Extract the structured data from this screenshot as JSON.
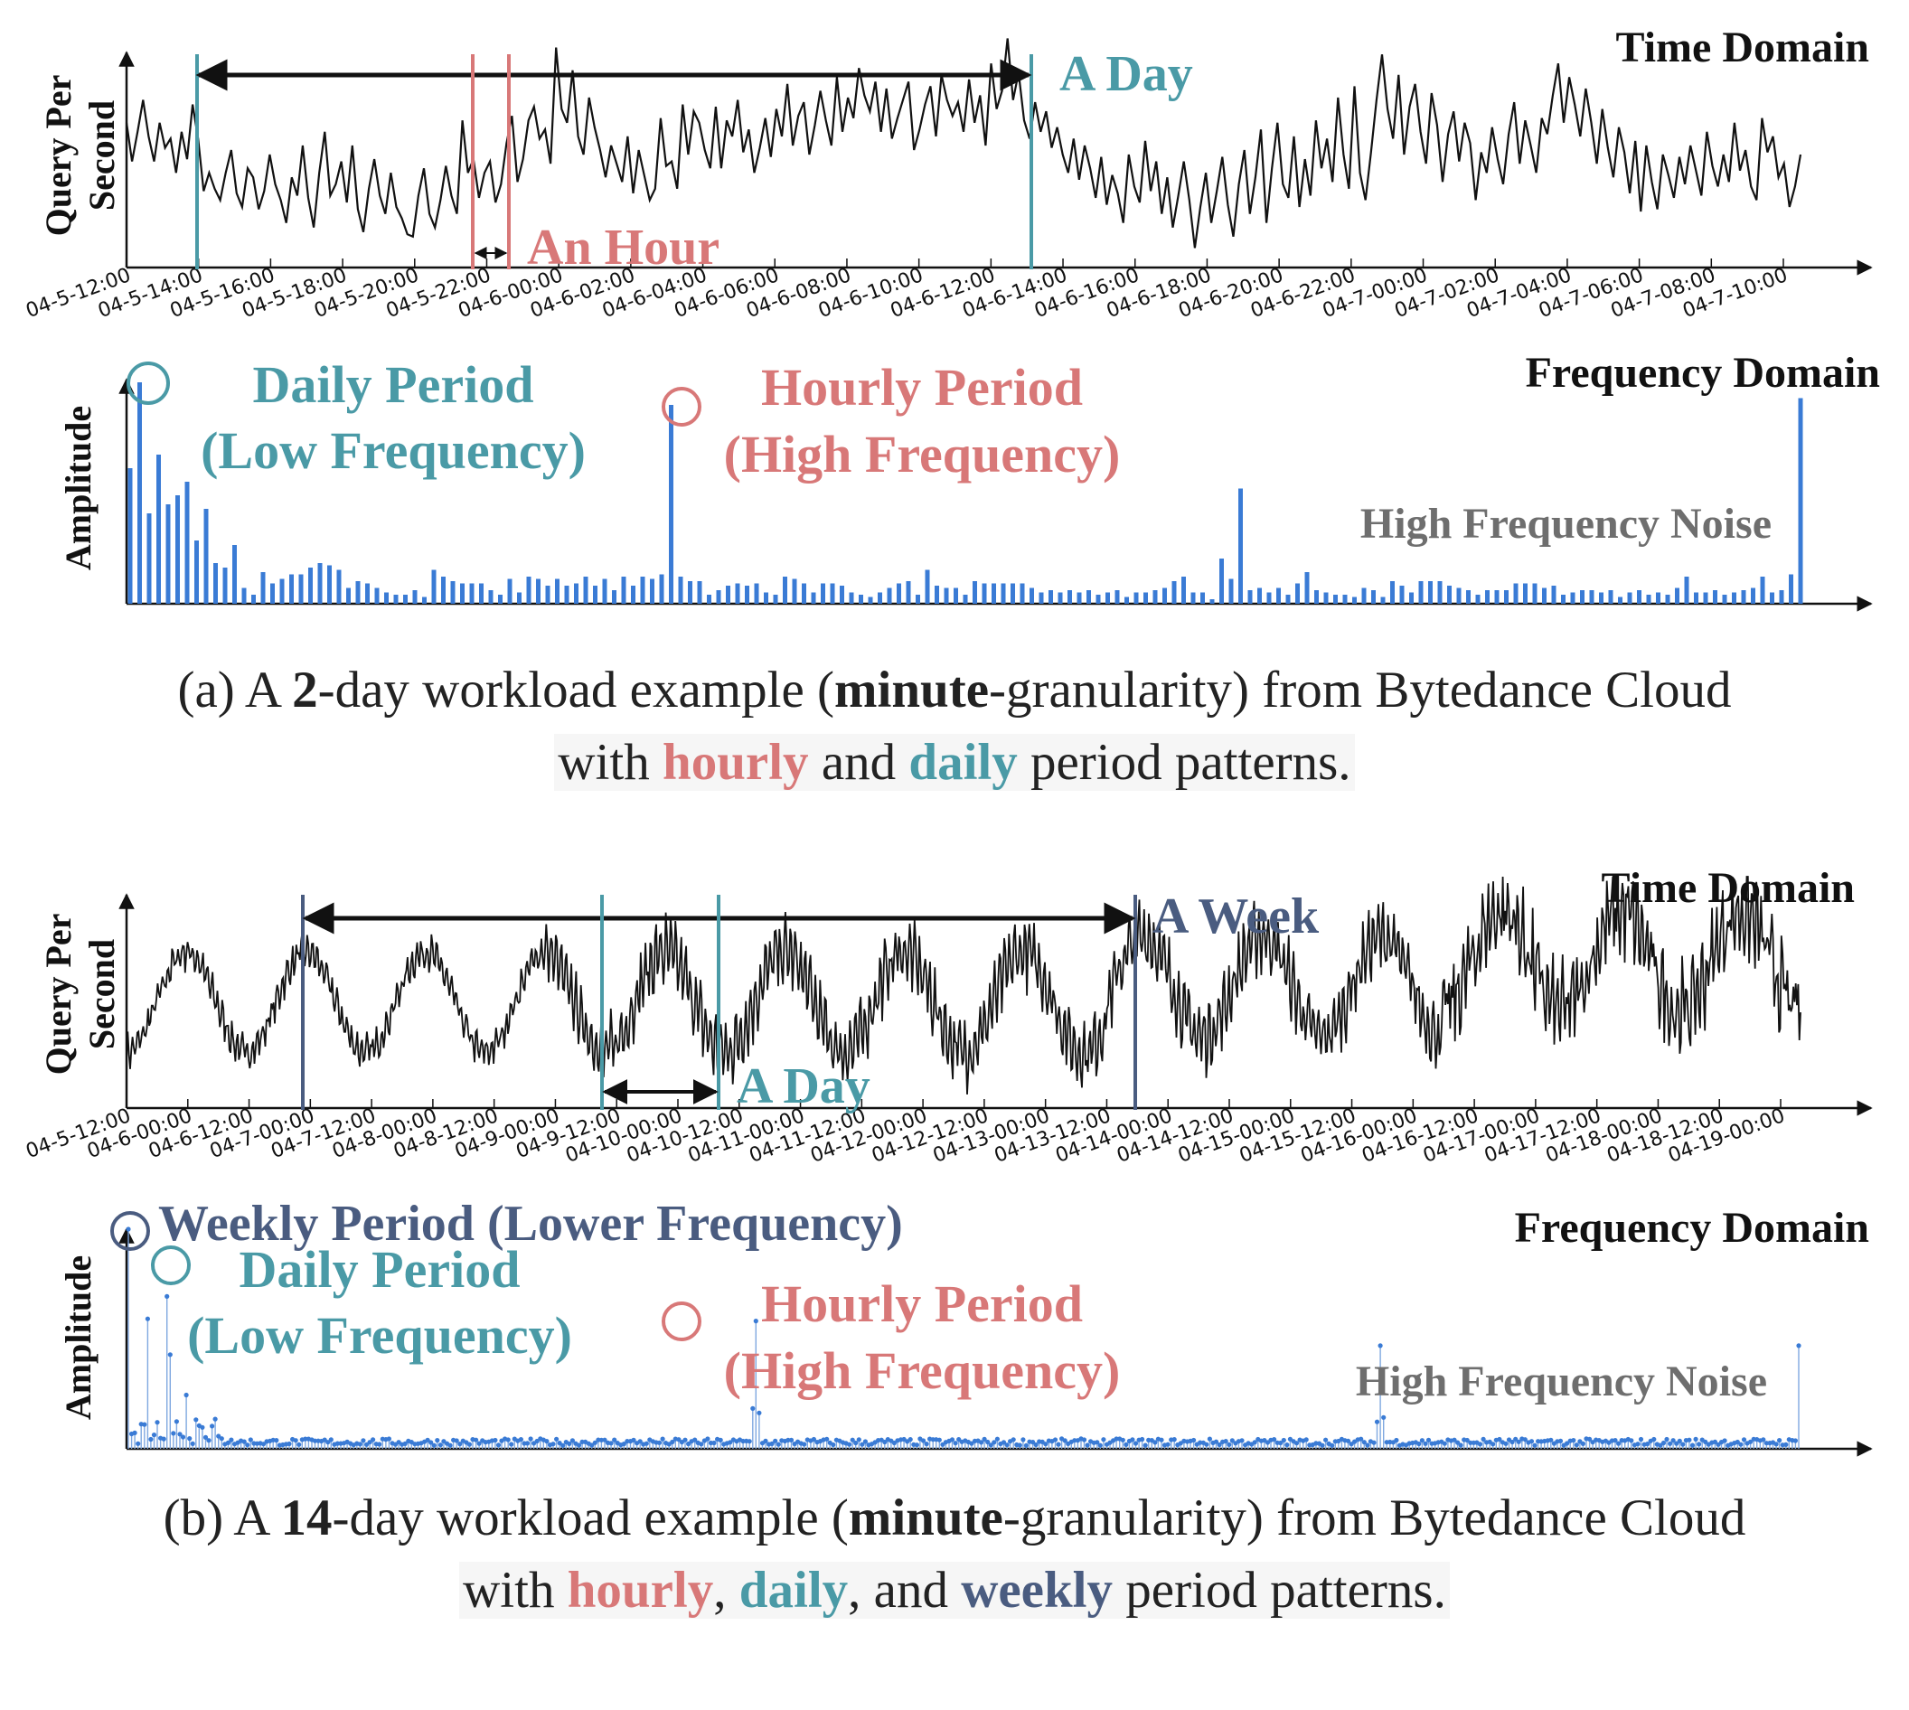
{
  "colors": {
    "teal": "#4a9aa6",
    "red": "#d87878",
    "navy": "#4a5c80",
    "noise_gray": "#6e6e6e",
    "bar_blue": "#3a7bd5",
    "line": "#111111"
  },
  "chart_data": [
    {
      "panel": "a",
      "type": "line",
      "title": "Time Domain",
      "ylabel": "Query Per Second",
      "x_ticks": [
        "04-5-12:00",
        "04-5-14:00",
        "04-5-16:00",
        "04-5-18:00",
        "04-5-20:00",
        "04-5-22:00",
        "04-6-00:00",
        "04-6-02:00",
        "04-6-04:00",
        "04-6-06:00",
        "04-6-08:00",
        "04-6-10:00",
        "04-6-12:00",
        "04-6-14:00",
        "04-6-16:00",
        "04-6-18:00",
        "04-6-20:00",
        "04-6-22:00",
        "04-7-00:00",
        "04-7-02:00",
        "04-7-04:00",
        "04-7-06:00",
        "04-7-08:00",
        "04-7-10:00"
      ],
      "xlim_hours": [
        0,
        24
      ],
      "values": [
        0.62,
        0.45,
        0.58,
        0.72,
        0.56,
        0.45,
        0.62,
        0.51,
        0.55,
        0.4,
        0.58,
        0.46,
        0.7,
        0.55,
        0.32,
        0.4,
        0.33,
        0.28,
        0.4,
        0.5,
        0.31,
        0.25,
        0.42,
        0.38,
        0.24,
        0.32,
        0.48,
        0.35,
        0.28,
        0.18,
        0.38,
        0.3,
        0.52,
        0.29,
        0.16,
        0.4,
        0.58,
        0.3,
        0.35,
        0.45,
        0.27,
        0.52,
        0.24,
        0.14,
        0.33,
        0.46,
        0.3,
        0.22,
        0.4,
        0.25,
        0.2,
        0.13,
        0.12,
        0.3,
        0.42,
        0.22,
        0.16,
        0.28,
        0.43,
        0.3,
        0.22,
        0.63,
        0.4,
        0.46,
        0.29,
        0.4,
        0.45,
        0.27,
        0.35,
        0.53,
        0.65,
        0.36,
        0.46,
        0.63,
        0.69,
        0.55,
        0.59,
        0.44,
        0.95,
        0.68,
        0.62,
        0.85,
        0.56,
        0.48,
        0.73,
        0.6,
        0.5,
        0.38,
        0.52,
        0.44,
        0.36,
        0.56,
        0.31,
        0.5,
        0.39,
        0.28,
        0.33,
        0.64,
        0.43,
        0.45,
        0.33,
        0.7,
        0.48,
        0.67,
        0.62,
        0.5,
        0.42,
        0.69,
        0.42,
        0.63,
        0.56,
        0.72,
        0.49,
        0.59,
        0.4,
        0.51,
        0.64,
        0.47,
        0.68,
        0.56,
        0.79,
        0.52,
        0.65,
        0.71,
        0.48,
        0.61,
        0.76,
        0.63,
        0.52,
        0.82,
        0.58,
        0.73,
        0.64,
        0.86,
        0.74,
        0.67,
        0.8,
        0.58,
        0.77,
        0.55,
        0.64,
        0.72,
        0.8,
        0.5,
        0.59,
        0.7,
        0.78,
        0.56,
        0.83,
        0.72,
        0.65,
        0.71,
        0.58,
        0.81,
        0.62,
        0.74,
        0.52,
        0.88,
        0.68,
        0.76,
        0.99,
        0.72,
        0.84,
        0.63,
        0.55,
        0.71,
        0.58,
        0.67,
        0.51,
        0.6,
        0.48,
        0.4,
        0.55,
        0.37,
        0.52,
        0.42,
        0.29,
        0.47,
        0.26,
        0.39,
        0.31,
        0.18,
        0.48,
        0.34,
        0.27,
        0.54,
        0.32,
        0.45,
        0.22,
        0.38,
        0.16,
        0.3,
        0.45,
        0.28,
        0.07,
        0.25,
        0.4,
        0.18,
        0.32,
        0.47,
        0.26,
        0.12,
        0.35,
        0.5,
        0.22,
        0.38,
        0.59,
        0.18,
        0.42,
        0.62,
        0.35,
        0.29,
        0.56,
        0.25,
        0.46,
        0.3,
        0.63,
        0.42,
        0.55,
        0.36,
        0.73,
        0.48,
        0.33,
        0.78,
        0.4,
        0.28,
        0.49,
        0.72,
        0.92,
        0.68,
        0.55,
        0.83,
        0.48,
        0.69,
        0.79,
        0.58,
        0.44,
        0.75,
        0.61,
        0.36,
        0.57,
        0.67,
        0.45,
        0.62,
        0.53,
        0.28,
        0.49,
        0.4,
        0.6,
        0.46,
        0.35,
        0.57,
        0.71,
        0.44,
        0.63,
        0.52,
        0.4,
        0.64,
        0.57,
        0.74,
        0.88,
        0.62,
        0.82,
        0.7,
        0.56,
        0.77,
        0.62,
        0.44,
        0.68,
        0.51,
        0.38,
        0.6,
        0.49,
        0.31,
        0.54,
        0.23,
        0.52,
        0.36,
        0.24,
        0.48,
        0.39,
        0.29,
        0.47,
        0.35,
        0.52,
        0.41,
        0.3,
        0.58,
        0.43,
        0.34,
        0.48,
        0.36,
        0.62,
        0.41,
        0.5,
        0.34,
        0.28,
        0.64,
        0.49,
        0.56,
        0.38,
        0.44,
        0.25,
        0.34,
        0.48
      ],
      "annotations": [
        {
          "label": "A Day",
          "start_hour": 1,
          "end_hour": 25
        },
        {
          "label": "An Hour",
          "start_hour": 9.8,
          "end_hour": 10.8
        }
      ]
    },
    {
      "panel": "a",
      "type": "bar",
      "title": "Frequency Domain",
      "ylabel": "Amplitude",
      "values": [
        0.6,
        0.98,
        0.4,
        0.66,
        0.44,
        0.48,
        0.54,
        0.28,
        0.42,
        0.18,
        0.16,
        0.26,
        0.07,
        0.04,
        0.14,
        0.09,
        0.11,
        0.13,
        0.13,
        0.16,
        0.18,
        0.17,
        0.15,
        0.07,
        0.1,
        0.09,
        0.07,
        0.05,
        0.04,
        0.04,
        0.06,
        0.03,
        0.15,
        0.12,
        0.1,
        0.09,
        0.09,
        0.09,
        0.06,
        0.04,
        0.11,
        0.05,
        0.12,
        0.11,
        0.08,
        0.11,
        0.08,
        0.09,
        0.12,
        0.08,
        0.11,
        0.06,
        0.12,
        0.08,
        0.12,
        0.11,
        0.13,
        0.88,
        0.12,
        0.1,
        0.1,
        0.04,
        0.06,
        0.08,
        0.09,
        0.08,
        0.09,
        0.05,
        0.04,
        0.12,
        0.11,
        0.09,
        0.05,
        0.09,
        0.09,
        0.08,
        0.05,
        0.04,
        0.03,
        0.05,
        0.07,
        0.09,
        0.1,
        0.04,
        0.15,
        0.08,
        0.07,
        0.07,
        0.04,
        0.1,
        0.09,
        0.09,
        0.09,
        0.09,
        0.09,
        0.07,
        0.05,
        0.06,
        0.05,
        0.06,
        0.05,
        0.06,
        0.04,
        0.05,
        0.06,
        0.03,
        0.05,
        0.05,
        0.06,
        0.07,
        0.1,
        0.12,
        0.05,
        0.05,
        0.02,
        0.2,
        0.11,
        0.51,
        0.06,
        0.07,
        0.05,
        0.07,
        0.04,
        0.09,
        0.14,
        0.06,
        0.05,
        0.04,
        0.04,
        0.03,
        0.07,
        0.06,
        0.03,
        0.1,
        0.08,
        0.05,
        0.1,
        0.1,
        0.1,
        0.08,
        0.07,
        0.06,
        0.04,
        0.06,
        0.06,
        0.06,
        0.09,
        0.09,
        0.09,
        0.07,
        0.08,
        0.04,
        0.05,
        0.06,
        0.06,
        0.05,
        0.06,
        0.03,
        0.05,
        0.06,
        0.04,
        0.05,
        0.04,
        0.07,
        0.12,
        0.05,
        0.05,
        0.06,
        0.04,
        0.05,
        0.06,
        0.07,
        0.12,
        0.05,
        0.06,
        0.13,
        0.91
      ],
      "annotations": [
        {
          "label": "Daily Period (Low Frequency)",
          "bar_index": 1
        },
        {
          "label": "Hourly Period (High Frequency)",
          "bar_index": 57
        },
        {
          "label": "High Frequency Noise"
        }
      ]
    },
    {
      "panel": "b",
      "type": "line",
      "title": "Time Domain",
      "ylabel": "Query Per Second",
      "x_ticks": [
        "04-5-12:00",
        "04-6-00:00",
        "04-6-12:00",
        "04-7-00:00",
        "04-7-12:00",
        "04-8-00:00",
        "04-8-12:00",
        "04-9-00:00",
        "04-9-12:00",
        "04-10-00:00",
        "04-10-12:00",
        "04-11-00:00",
        "04-11-12:00",
        "04-12-00:00",
        "04-12-12:00",
        "04-13-00:00",
        "04-13-12:00",
        "04-14-00:00",
        "04-14-12:00",
        "04-15-00:00",
        "04-15-12:00",
        "04-16-00:00",
        "04-16-12:00",
        "04-17-00:00",
        "04-17-12:00",
        "04-18-00:00",
        "04-18-12:00",
        "04-19-00:00"
      ],
      "xlim_days": [
        0,
        14
      ],
      "annotations": [
        {
          "label": "A Week",
          "start_day": 1.5,
          "end_day": 8.5
        },
        {
          "label": "A Day",
          "start_day": 4.0,
          "end_day": 5.0
        }
      ]
    },
    {
      "panel": "b",
      "type": "bar",
      "title": "Frequency Domain",
      "ylabel": "Amplitude",
      "annotations": [
        {
          "label": "Weekly Period (Lower Frequency)"
        },
        {
          "label": "Daily Period"
        },
        {
          "label": "(Low Frequency)"
        },
        {
          "label": "Hourly Period"
        },
        {
          "label": "(High Frequency)"
        },
        {
          "label": "High Frequency Noise"
        }
      ]
    }
  ],
  "labels": {
    "a_time_title": "Time Domain",
    "a_time_ylabel1": "Query Per",
    "a_time_ylabel2": "Second",
    "a_day": "A Day",
    "an_hour": "An Hour",
    "a_freq_title": "Frequency Domain",
    "a_freq_ylabel": "Amplitude",
    "a_daily_1": "Daily Period",
    "a_daily_2": "(Low Frequency)",
    "a_hourly_1": "Hourly Period",
    "a_hourly_2": "(High Frequency)",
    "a_noise": "High Frequency Noise",
    "b_time_title": "Time Domain",
    "b_time_ylabel1": "Query Per",
    "b_time_ylabel2": "Second",
    "a_week": "A Week",
    "b_day": "A Day",
    "b_freq_title": "Frequency Domain",
    "b_freq_ylabel": "Amplitude",
    "b_weekly": "Weekly Period (Lower Frequency)",
    "b_daily_1": "Daily Period",
    "b_daily_2": "(Low Frequency)",
    "b_hourly_1": "Hourly Period",
    "b_hourly_2": "(High Frequency)",
    "b_noise": "High Frequency Noise"
  },
  "captions": {
    "a": {
      "prefix": "(a) A ",
      "days": "2",
      "mid": "-day workload example (",
      "gran": "minute",
      "tail": "-granularity) from Bytedance Cloud",
      "line2_with": "with ",
      "hourly": "hourly",
      "and": " and ",
      "daily": "daily",
      "end": " period patterns."
    },
    "b": {
      "prefix": "(b) A ",
      "days": "14",
      "mid": "-day workload example (",
      "gran": "minute",
      "tail": "-granularity) from Bytedance Cloud",
      "line2_with": "with ",
      "hourly": "hourly",
      "comma1": ", ",
      "daily": "daily",
      "and": ", and ",
      "weekly": "weekly",
      "end": " period patterns."
    }
  }
}
